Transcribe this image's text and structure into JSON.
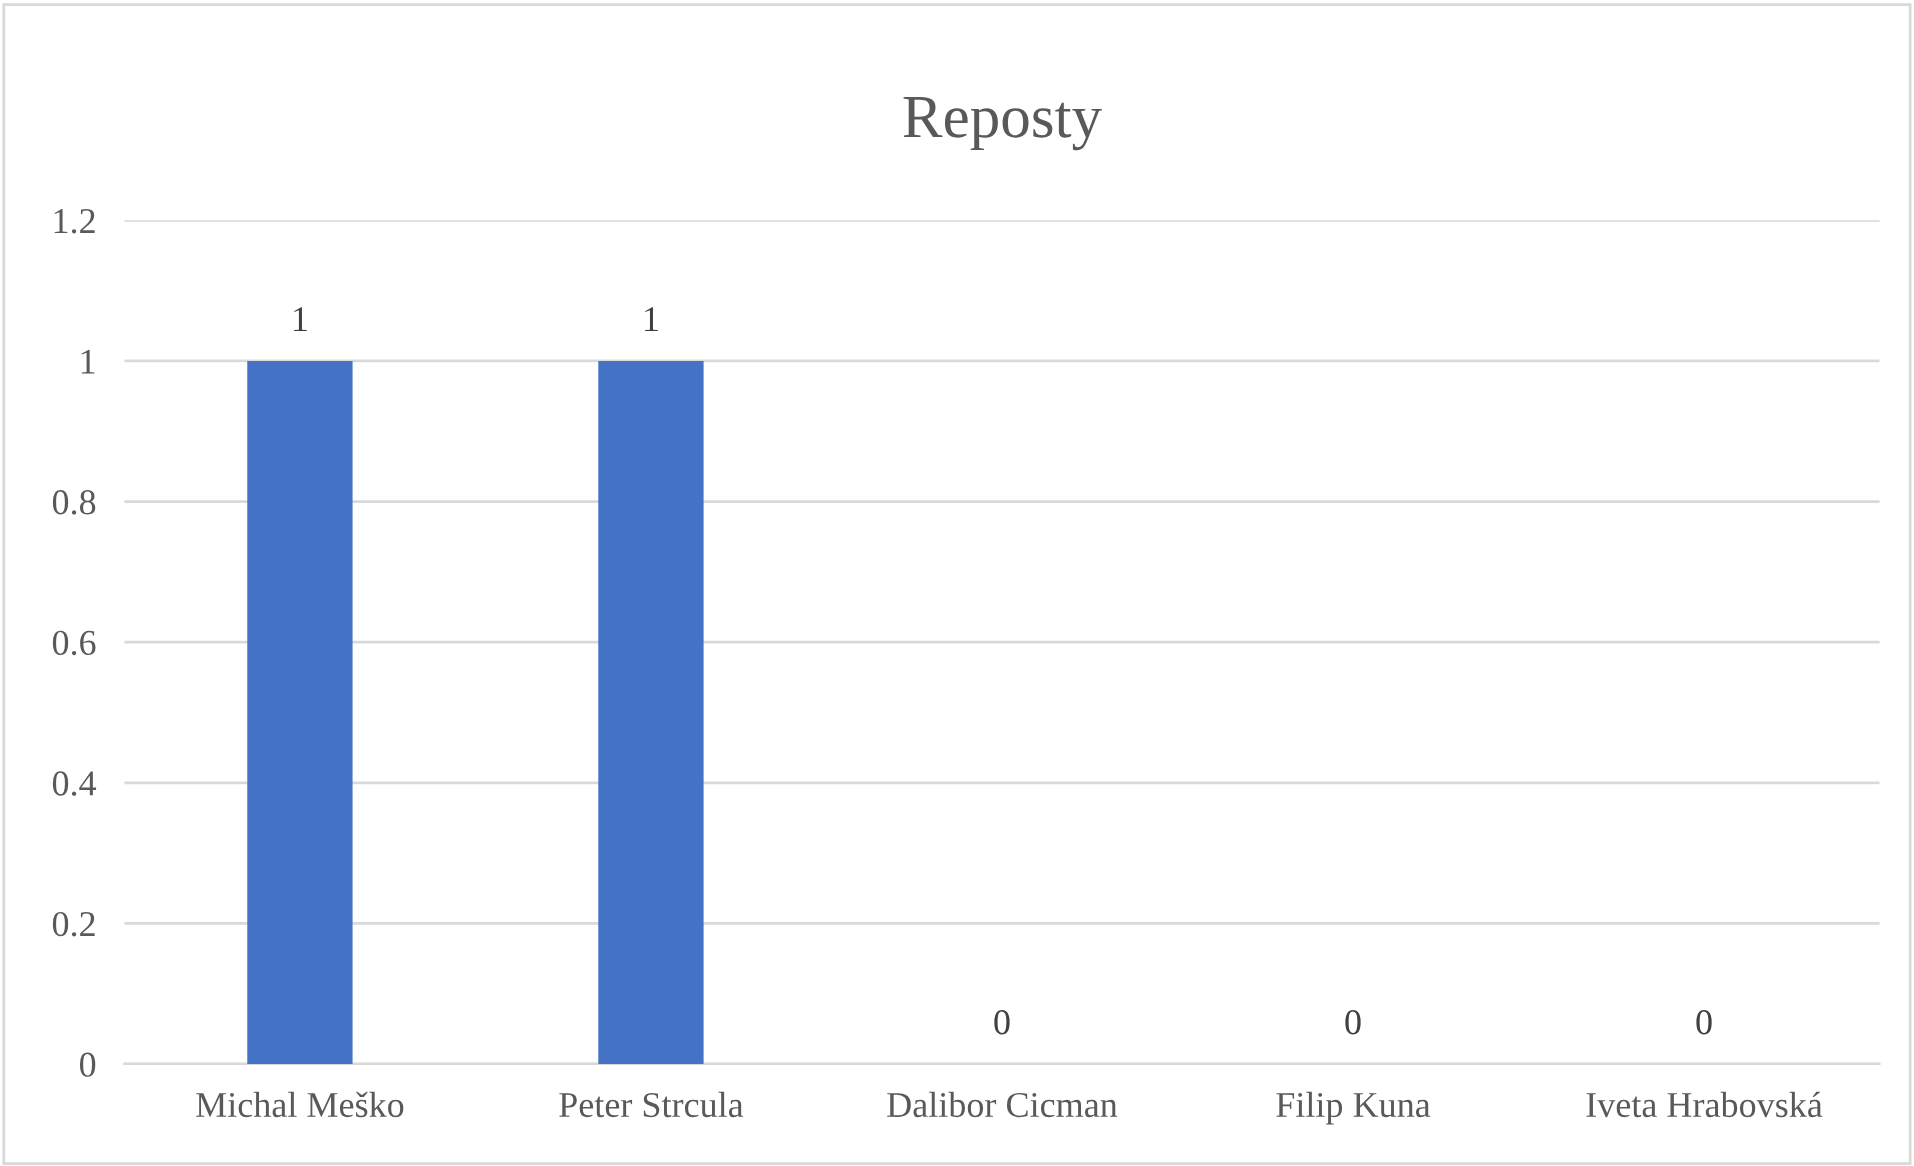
{
  "chart_data": {
    "type": "bar",
    "title": "Reposty",
    "categories": [
      "Michal Meško",
      "Peter Strcula",
      "Dalibor Cicman",
      "Filip Kuna",
      "Iveta Hrabovská"
    ],
    "values": [
      1,
      1,
      0,
      0,
      0
    ],
    "color": "#4472c4",
    "ylim": [
      0,
      1.2
    ],
    "yticks": [
      0,
      0.2,
      0.4,
      0.6,
      0.8,
      1,
      1.2
    ],
    "grid": "y",
    "data_labels": true
  }
}
